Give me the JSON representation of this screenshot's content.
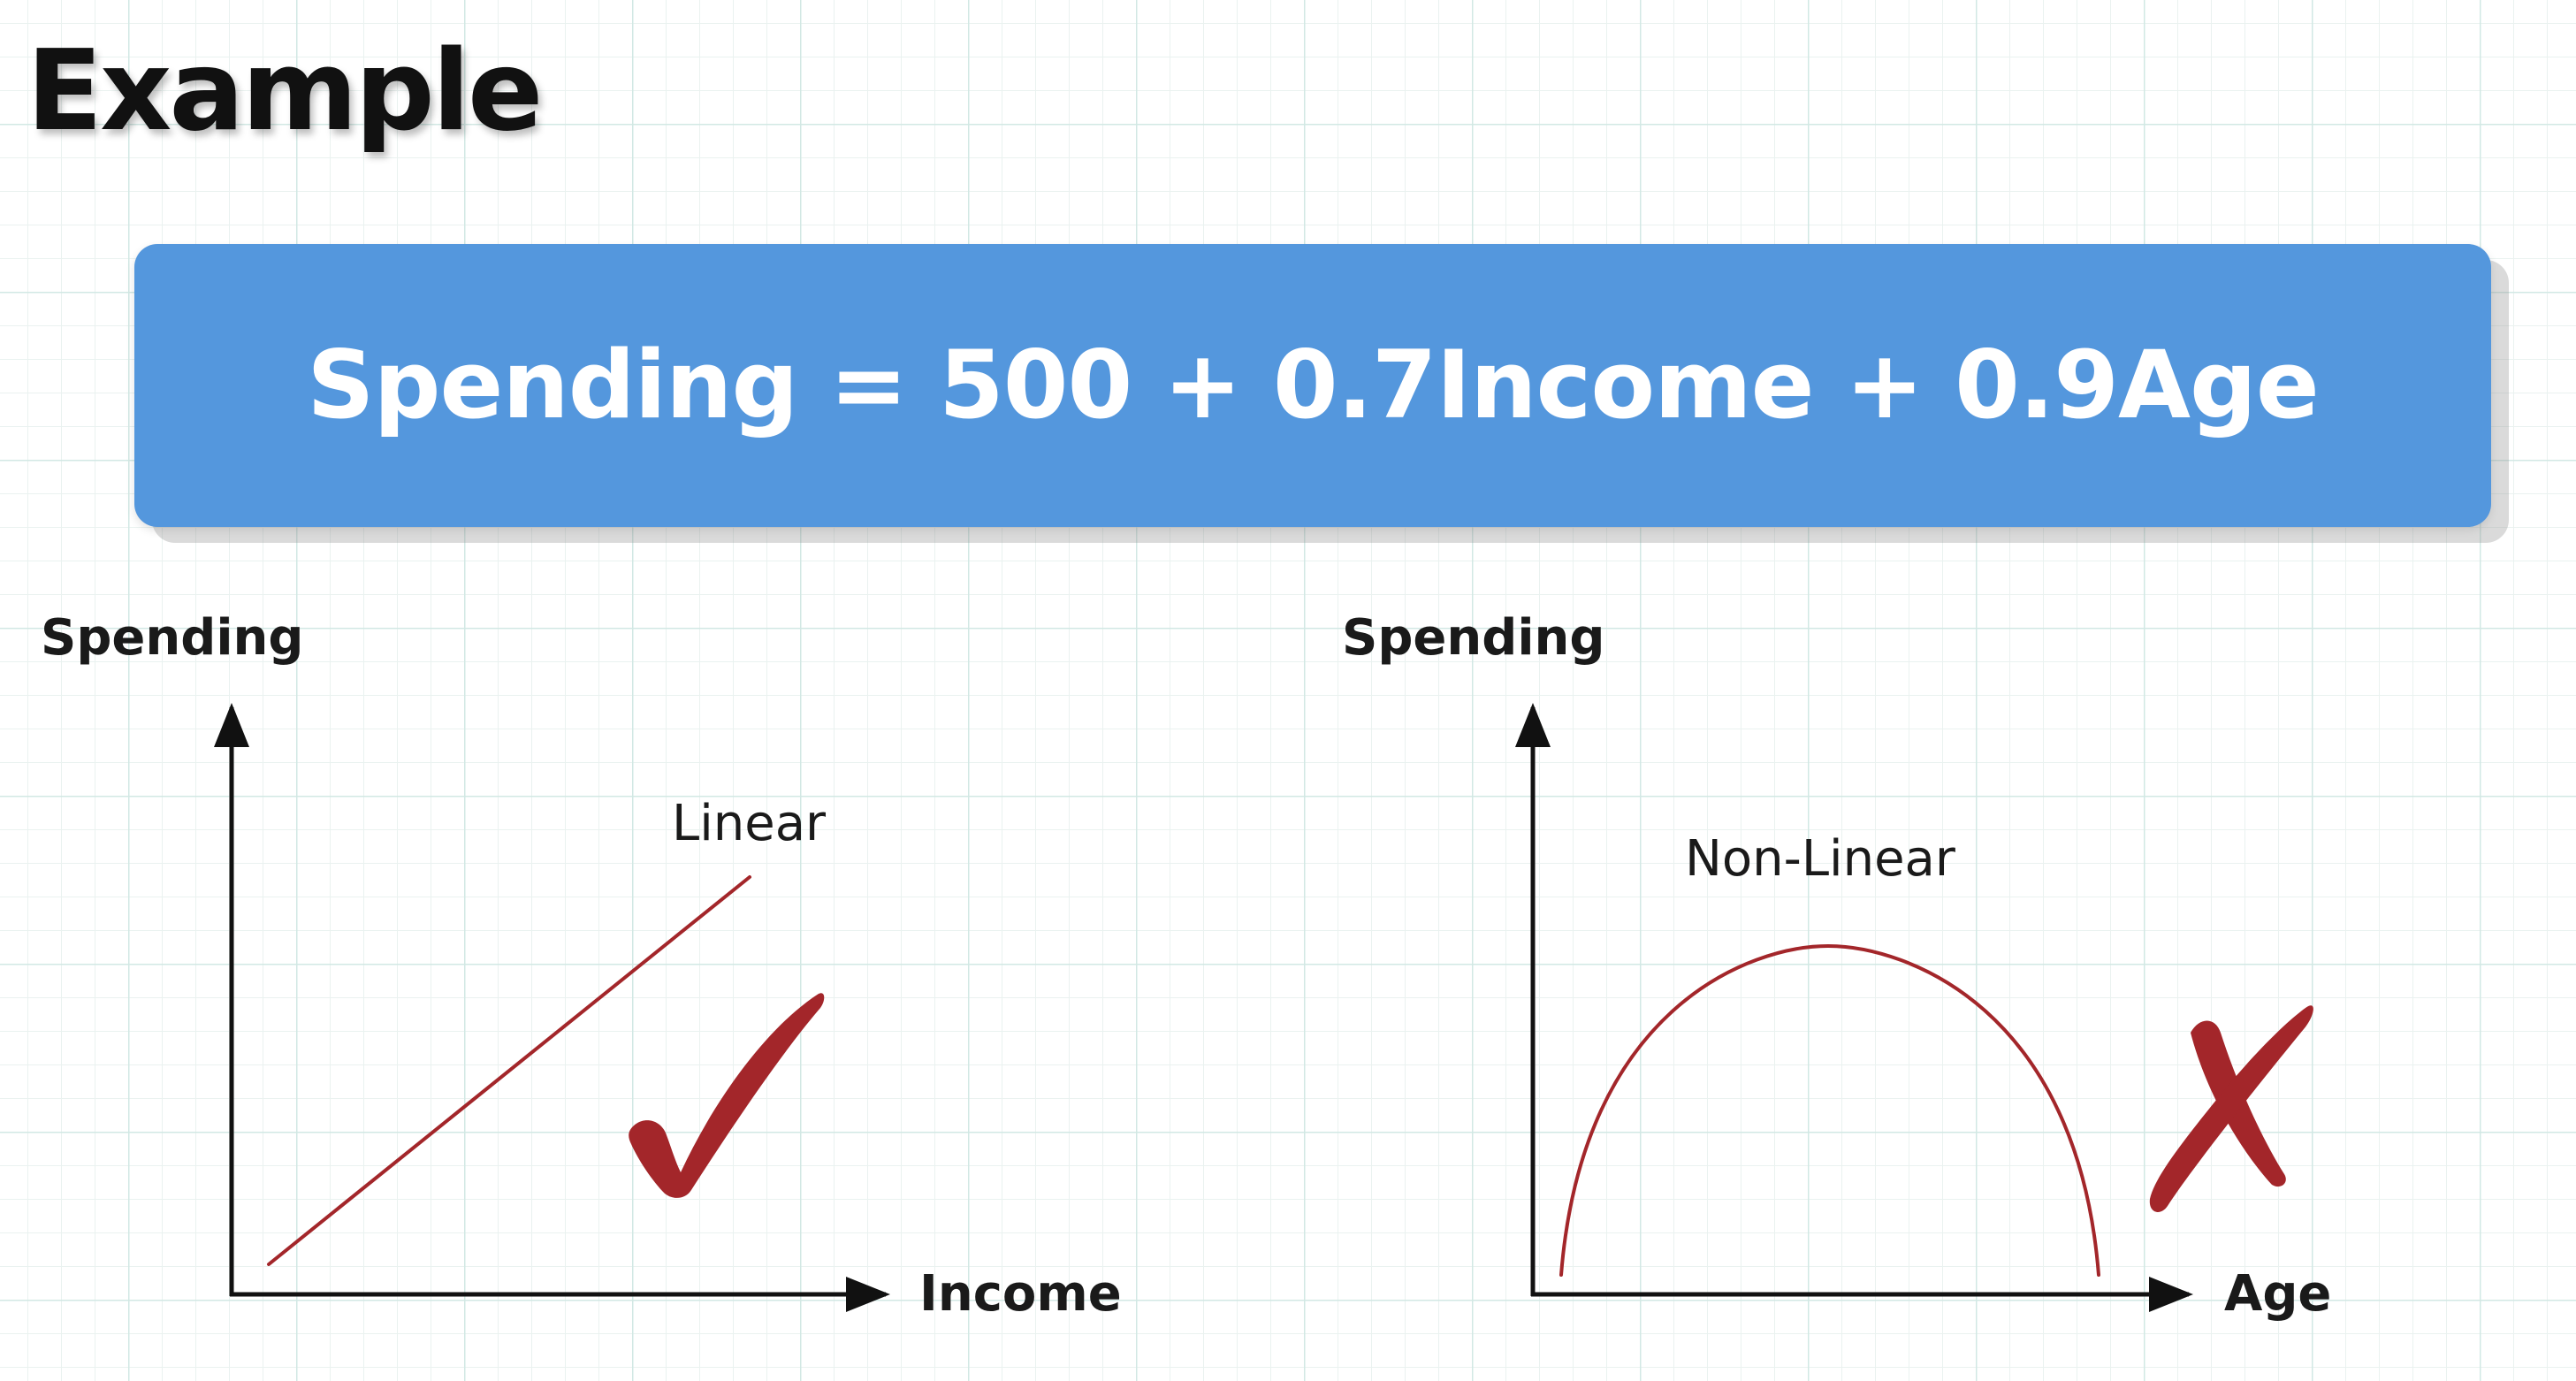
{
  "title": "Example",
  "equation": "Spending = 500 + 0.7Income + 0.9Age",
  "colors": {
    "banner": "#5497dd",
    "curve": "#a3262a",
    "mark": "#a3262a"
  },
  "diagrams": [
    {
      "id": "income",
      "y_label": "Spending",
      "x_label": "Income",
      "curve_label": "Linear",
      "verdict_icon": "check-mark-icon"
    },
    {
      "id": "age",
      "y_label": "Spending",
      "x_label": "Age",
      "curve_label": "Non-Linear",
      "verdict_icon": "cross-mark-icon"
    }
  ]
}
